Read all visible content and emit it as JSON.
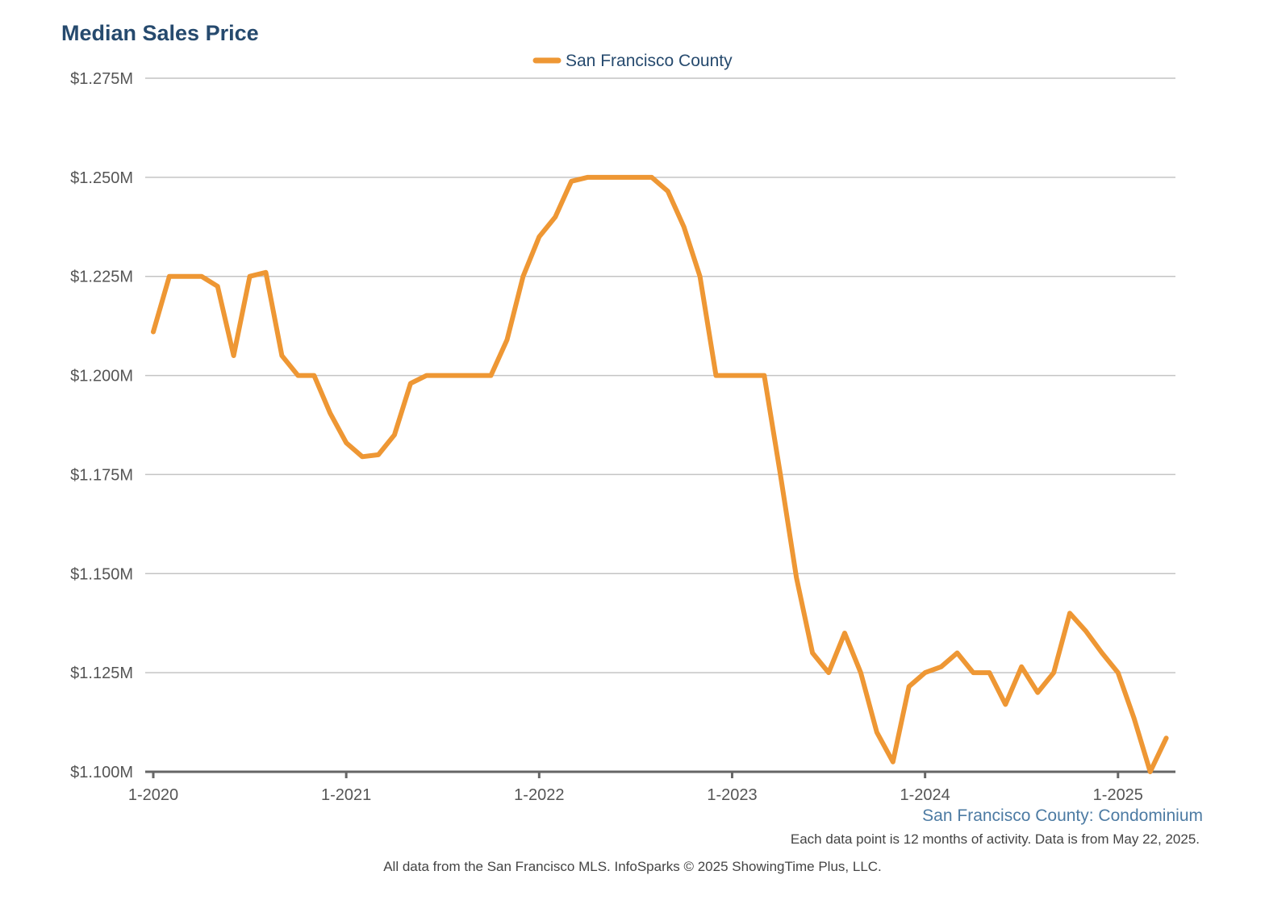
{
  "chart_data": {
    "type": "line",
    "title": "Median Sales Price",
    "xlabel": "",
    "ylabel": "",
    "ylim": [
      1100000,
      1275000
    ],
    "y_tick_values": [
      1100000,
      1125000,
      1150000,
      1175000,
      1200000,
      1225000,
      1250000,
      1275000
    ],
    "y_tick_labels": [
      "$1.100M",
      "$1.125M",
      "$1.150M",
      "$1.175M",
      "$1.200M",
      "$1.225M",
      "$1.250M",
      "$1.275M"
    ],
    "x_tick_labels": [
      "1-2020",
      "1-2021",
      "1-2022",
      "1-2023",
      "1-2024",
      "1-2025"
    ],
    "xlim": [
      "2020-01",
      "2025-04"
    ],
    "grid": true,
    "legend_position": "top-center",
    "series": [
      {
        "name": "San Francisco County",
        "color": "#ee9734",
        "points": [
          {
            "x": "2020-01",
            "y": 1211000
          },
          {
            "x": "2020-02",
            "y": 1225000
          },
          {
            "x": "2020-03",
            "y": 1225000
          },
          {
            "x": "2020-04",
            "y": 1225000
          },
          {
            "x": "2020-05",
            "y": 1222500
          },
          {
            "x": "2020-06",
            "y": 1205000
          },
          {
            "x": "2020-07",
            "y": 1225000
          },
          {
            "x": "2020-08",
            "y": 1226000
          },
          {
            "x": "2020-09",
            "y": 1205000
          },
          {
            "x": "2020-10",
            "y": 1200000
          },
          {
            "x": "2020-11",
            "y": 1200000
          },
          {
            "x": "2020-12",
            "y": 1190500
          },
          {
            "x": "2021-01",
            "y": 1183000
          },
          {
            "x": "2021-02",
            "y": 1179500
          },
          {
            "x": "2021-03",
            "y": 1180000
          },
          {
            "x": "2021-04",
            "y": 1185000
          },
          {
            "x": "2021-05",
            "y": 1198000
          },
          {
            "x": "2021-06",
            "y": 1200000
          },
          {
            "x": "2021-07",
            "y": 1200000
          },
          {
            "x": "2021-08",
            "y": 1200000
          },
          {
            "x": "2021-09",
            "y": 1200000
          },
          {
            "x": "2021-10",
            "y": 1200000
          },
          {
            "x": "2021-11",
            "y": 1209000
          },
          {
            "x": "2021-12",
            "y": 1225000
          },
          {
            "x": "2022-01",
            "y": 1235000
          },
          {
            "x": "2022-02",
            "y": 1240000
          },
          {
            "x": "2022-03",
            "y": 1249000
          },
          {
            "x": "2022-04",
            "y": 1250000
          },
          {
            "x": "2022-05",
            "y": 1250000
          },
          {
            "x": "2022-06",
            "y": 1250000
          },
          {
            "x": "2022-07",
            "y": 1250000
          },
          {
            "x": "2022-08",
            "y": 1250000
          },
          {
            "x": "2022-09",
            "y": 1246500
          },
          {
            "x": "2022-10",
            "y": 1237500
          },
          {
            "x": "2022-11",
            "y": 1225000
          },
          {
            "x": "2022-12",
            "y": 1200000
          },
          {
            "x": "2023-01",
            "y": 1200000
          },
          {
            "x": "2023-02",
            "y": 1200000
          },
          {
            "x": "2023-03",
            "y": 1200000
          },
          {
            "x": "2023-04",
            "y": 1175000
          },
          {
            "x": "2023-05",
            "y": 1149000
          },
          {
            "x": "2023-06",
            "y": 1130000
          },
          {
            "x": "2023-07",
            "y": 1125000
          },
          {
            "x": "2023-08",
            "y": 1135000
          },
          {
            "x": "2023-09",
            "y": 1125000
          },
          {
            "x": "2023-10",
            "y": 1110000
          },
          {
            "x": "2023-11",
            "y": 1102500
          },
          {
            "x": "2023-12",
            "y": 1121500
          },
          {
            "x": "2024-01",
            "y": 1125000
          },
          {
            "x": "2024-02",
            "y": 1126500
          },
          {
            "x": "2024-03",
            "y": 1130000
          },
          {
            "x": "2024-04",
            "y": 1125000
          },
          {
            "x": "2024-05",
            "y": 1125000
          },
          {
            "x": "2024-06",
            "y": 1117000
          },
          {
            "x": "2024-07",
            "y": 1126500
          },
          {
            "x": "2024-08",
            "y": 1120000
          },
          {
            "x": "2024-09",
            "y": 1125000
          },
          {
            "x": "2024-10",
            "y": 1140000
          },
          {
            "x": "2024-11",
            "y": 1135500
          },
          {
            "x": "2024-12",
            "y": 1130000
          },
          {
            "x": "2025-01",
            "y": 1125000
          },
          {
            "x": "2025-02",
            "y": 1113500
          },
          {
            "x": "2025-03",
            "y": 1100000
          },
          {
            "x": "2025-04",
            "y": 1108500
          }
        ]
      }
    ]
  },
  "footer": {
    "subtitle": "San Francisco County: Condominium",
    "note": "Each data point is 12 months of activity. Data is from May 22, 2025.",
    "source": "All data from the San Francisco MLS. InfoSparks © 2025 ShowingTime Plus, LLC."
  }
}
